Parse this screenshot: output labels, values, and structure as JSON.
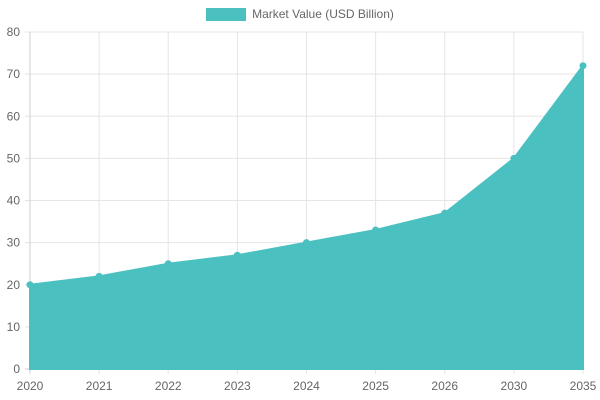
{
  "chart_data": {
    "type": "area",
    "categories": [
      "2020",
      "2021",
      "2022",
      "2023",
      "2024",
      "2025",
      "2026",
      "2030",
      "2035"
    ],
    "series": [
      {
        "name": "Market Value (USD Billion)",
        "values": [
          20,
          22,
          25,
          27,
          30,
          33,
          37,
          50,
          72
        ],
        "color": "#4bc0c0"
      }
    ],
    "ylim": [
      0,
      80
    ],
    "y_ticks": [
      0,
      10,
      20,
      30,
      40,
      50,
      60,
      70,
      80
    ],
    "grid": true,
    "legend_position": "top"
  }
}
